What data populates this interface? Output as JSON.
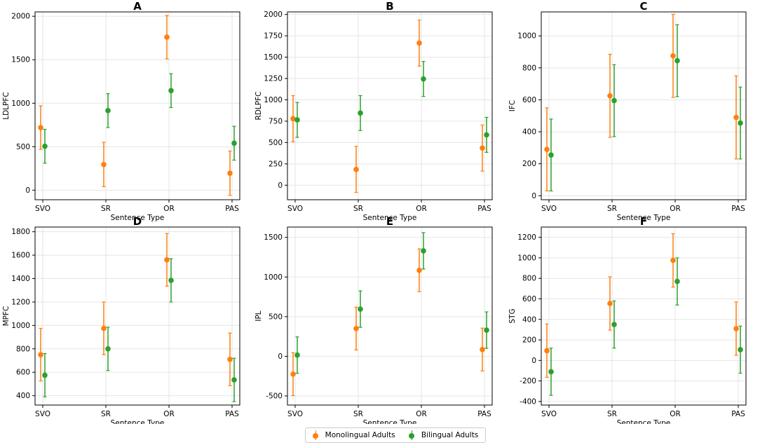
{
  "colors": {
    "monolingual": "#ff7f0e",
    "bilingual": "#2ca02c",
    "grid": "#e5e5e5",
    "axis": "#000000"
  },
  "legend": {
    "monolingual": "Monolingual Adults",
    "bilingual": "Bilingual Adults"
  },
  "chart_data": [
    {
      "title": "A",
      "type": "scatter",
      "xlabel": "Sentence Type",
      "ylabel": "LDLPFC",
      "categories": [
        "SVO",
        "SR",
        "OR",
        "PAS"
      ],
      "ylim": [
        -110,
        2050
      ],
      "yticks": [
        0,
        500,
        1000,
        1500,
        2000
      ],
      "series": [
        {
          "name": "Monolingual Adults",
          "values": [
            720,
            295,
            1760,
            195
          ],
          "err": [
            250,
            255,
            250,
            255
          ]
        },
        {
          "name": "Bilingual Adults",
          "values": [
            505,
            915,
            1145,
            540
          ],
          "err": [
            195,
            195,
            195,
            195
          ]
        }
      ]
    },
    {
      "title": "B",
      "type": "scatter",
      "xlabel": "Sentence Type",
      "ylabel": "RDLPFC",
      "categories": [
        "SVO",
        "SR",
        "OR",
        "PAS"
      ],
      "ylim": [
        -170,
        2030
      ],
      "yticks": [
        0,
        250,
        500,
        750,
        1000,
        1250,
        1500,
        1750,
        2000
      ],
      "series": [
        {
          "name": "Monolingual Adults",
          "values": [
            780,
            185,
            1665,
            435
          ],
          "err": [
            270,
            270,
            270,
            270
          ]
        },
        {
          "name": "Bilingual Adults",
          "values": [
            765,
            845,
            1245,
            590
          ],
          "err": [
            205,
            205,
            205,
            205
          ]
        }
      ]
    },
    {
      "title": "C",
      "type": "scatter",
      "xlabel": "Sentence Type",
      "ylabel": "IFC",
      "categories": [
        "SVO",
        "SR",
        "OR",
        "PAS"
      ],
      "ylim": [
        -25,
        1150
      ],
      "yticks": [
        0,
        200,
        400,
        600,
        800,
        1000
      ],
      "series": [
        {
          "name": "Monolingual Adults",
          "values": [
            290,
            625,
            875,
            490
          ],
          "err": [
            260,
            260,
            260,
            260
          ]
        },
        {
          "name": "Bilingual Adults",
          "values": [
            255,
            595,
            845,
            455
          ],
          "err": [
            225,
            225,
            225,
            225
          ]
        }
      ]
    },
    {
      "title": "D",
      "type": "scatter",
      "xlabel": "Sentence Type",
      "ylabel": "MPFC",
      "categories": [
        "SVO",
        "SR",
        "OR",
        "PAS"
      ],
      "ylim": [
        320,
        1840
      ],
      "yticks": [
        400,
        600,
        800,
        1000,
        1200,
        1400,
        1600,
        1800
      ],
      "series": [
        {
          "name": "Monolingual Adults",
          "values": [
            750,
            975,
            1560,
            710
          ],
          "err": [
            225,
            225,
            225,
            225
          ]
        },
        {
          "name": "Bilingual Adults",
          "values": [
            575,
            800,
            1385,
            535
          ],
          "err": [
            185,
            185,
            185,
            185
          ]
        }
      ]
    },
    {
      "title": "E",
      "type": "scatter",
      "xlabel": "Sentence Type",
      "ylabel": "IPL",
      "categories": [
        "SVO",
        "SR",
        "OR",
        "PAS"
      ],
      "ylim": [
        -615,
        1630
      ],
      "yticks": [
        -500,
        0,
        500,
        1000,
        1500
      ],
      "series": [
        {
          "name": "Monolingual Adults",
          "values": [
            -225,
            350,
            1085,
            85
          ],
          "err": [
            270,
            270,
            270,
            270
          ]
        },
        {
          "name": "Bilingual Adults",
          "values": [
            15,
            595,
            1330,
            330
          ],
          "err": [
            230,
            230,
            230,
            230
          ]
        }
      ]
    },
    {
      "title": "F",
      "type": "scatter",
      "xlabel": "Sentence Type",
      "ylabel": "STG",
      "categories": [
        "SVO",
        "SR",
        "OR",
        "PAS"
      ],
      "ylim": [
        -435,
        1300
      ],
      "yticks": [
        -400,
        -200,
        0,
        200,
        400,
        600,
        800,
        1000,
        1200
      ],
      "series": [
        {
          "name": "Monolingual Adults",
          "values": [
            95,
            555,
            975,
            310
          ],
          "err": [
            260,
            260,
            260,
            260
          ]
        },
        {
          "name": "Bilingual Adults",
          "values": [
            -110,
            350,
            770,
            105
          ],
          "err": [
            230,
            230,
            230,
            230
          ]
        }
      ]
    }
  ]
}
